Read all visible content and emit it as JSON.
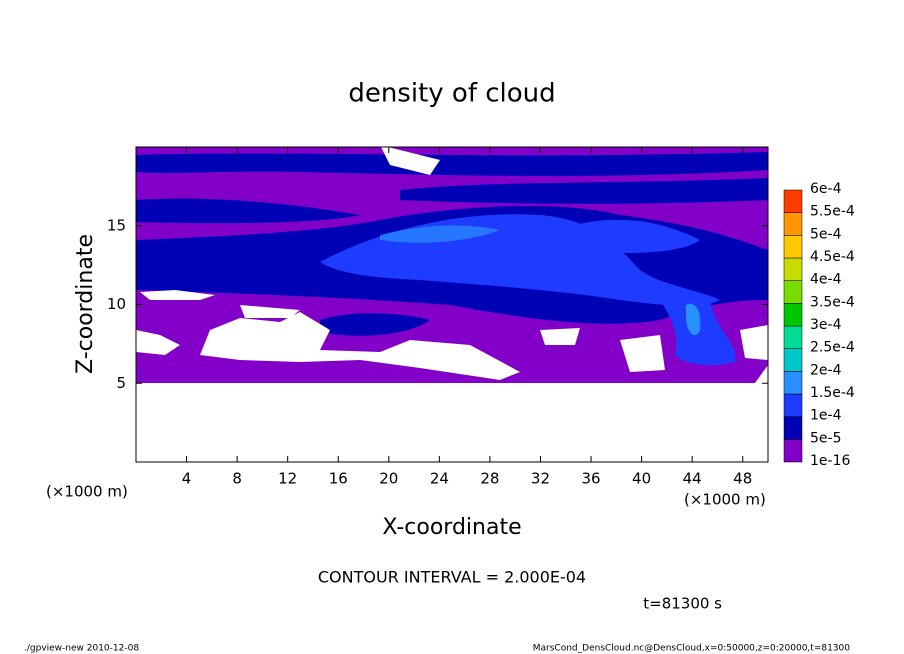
{
  "chart_data": {
    "type": "contour",
    "title": "density of cloud",
    "xlabel": "X-coordinate",
    "ylabel": "Z-coordinate",
    "x_unit_left": "(×1000 m)",
    "x_unit_right": "(×1000 m)",
    "xlim": [
      0,
      50
    ],
    "xticks": [
      4,
      8,
      12,
      16,
      20,
      24,
      28,
      32,
      36,
      40,
      44,
      48
    ],
    "ylim": [
      0,
      20
    ],
    "yticks": [
      5,
      10,
      15
    ],
    "colorbar": {
      "levels": [
        {
          "value": 1e-16,
          "label": "1e-16"
        },
        {
          "value": 5e-05,
          "label": "5e-5"
        },
        {
          "value": 0.0001,
          "label": "1e-4"
        },
        {
          "value": 0.00015,
          "label": "1.5e-4"
        },
        {
          "value": 0.0002,
          "label": "2e-4"
        },
        {
          "value": 0.00025,
          "label": "2.5e-4"
        },
        {
          "value": 0.0003,
          "label": "3e-4"
        },
        {
          "value": 0.00035,
          "label": "3.5e-4"
        },
        {
          "value": 0.0004,
          "label": "4e-4"
        },
        {
          "value": 0.00045,
          "label": "4.5e-4"
        },
        {
          "value": 0.0005,
          "label": "5e-4"
        },
        {
          "value": 0.00055,
          "label": "5.5e-4"
        },
        {
          "value": 0.0006,
          "label": "6e-4"
        }
      ],
      "colors": [
        "#8200c8",
        "#0000b4",
        "#1e3cff",
        "#2890ff",
        "#00c8c8",
        "#00dc96",
        "#00c800",
        "#78dc00",
        "#c8dc00",
        "#ffc800",
        "#ff9600",
        "#ff3c00",
        "#ff6464"
      ]
    },
    "contour_interval": "CONTOUR INTERVAL = 2.000E-04",
    "time_label": "t=81300 s",
    "footer_left": "./gpview-new  2010-12-08",
    "footer_right": "MarsCond_DensCloud.nc@DensCloud,x=0:50000,z=0:20000,t=81300"
  }
}
